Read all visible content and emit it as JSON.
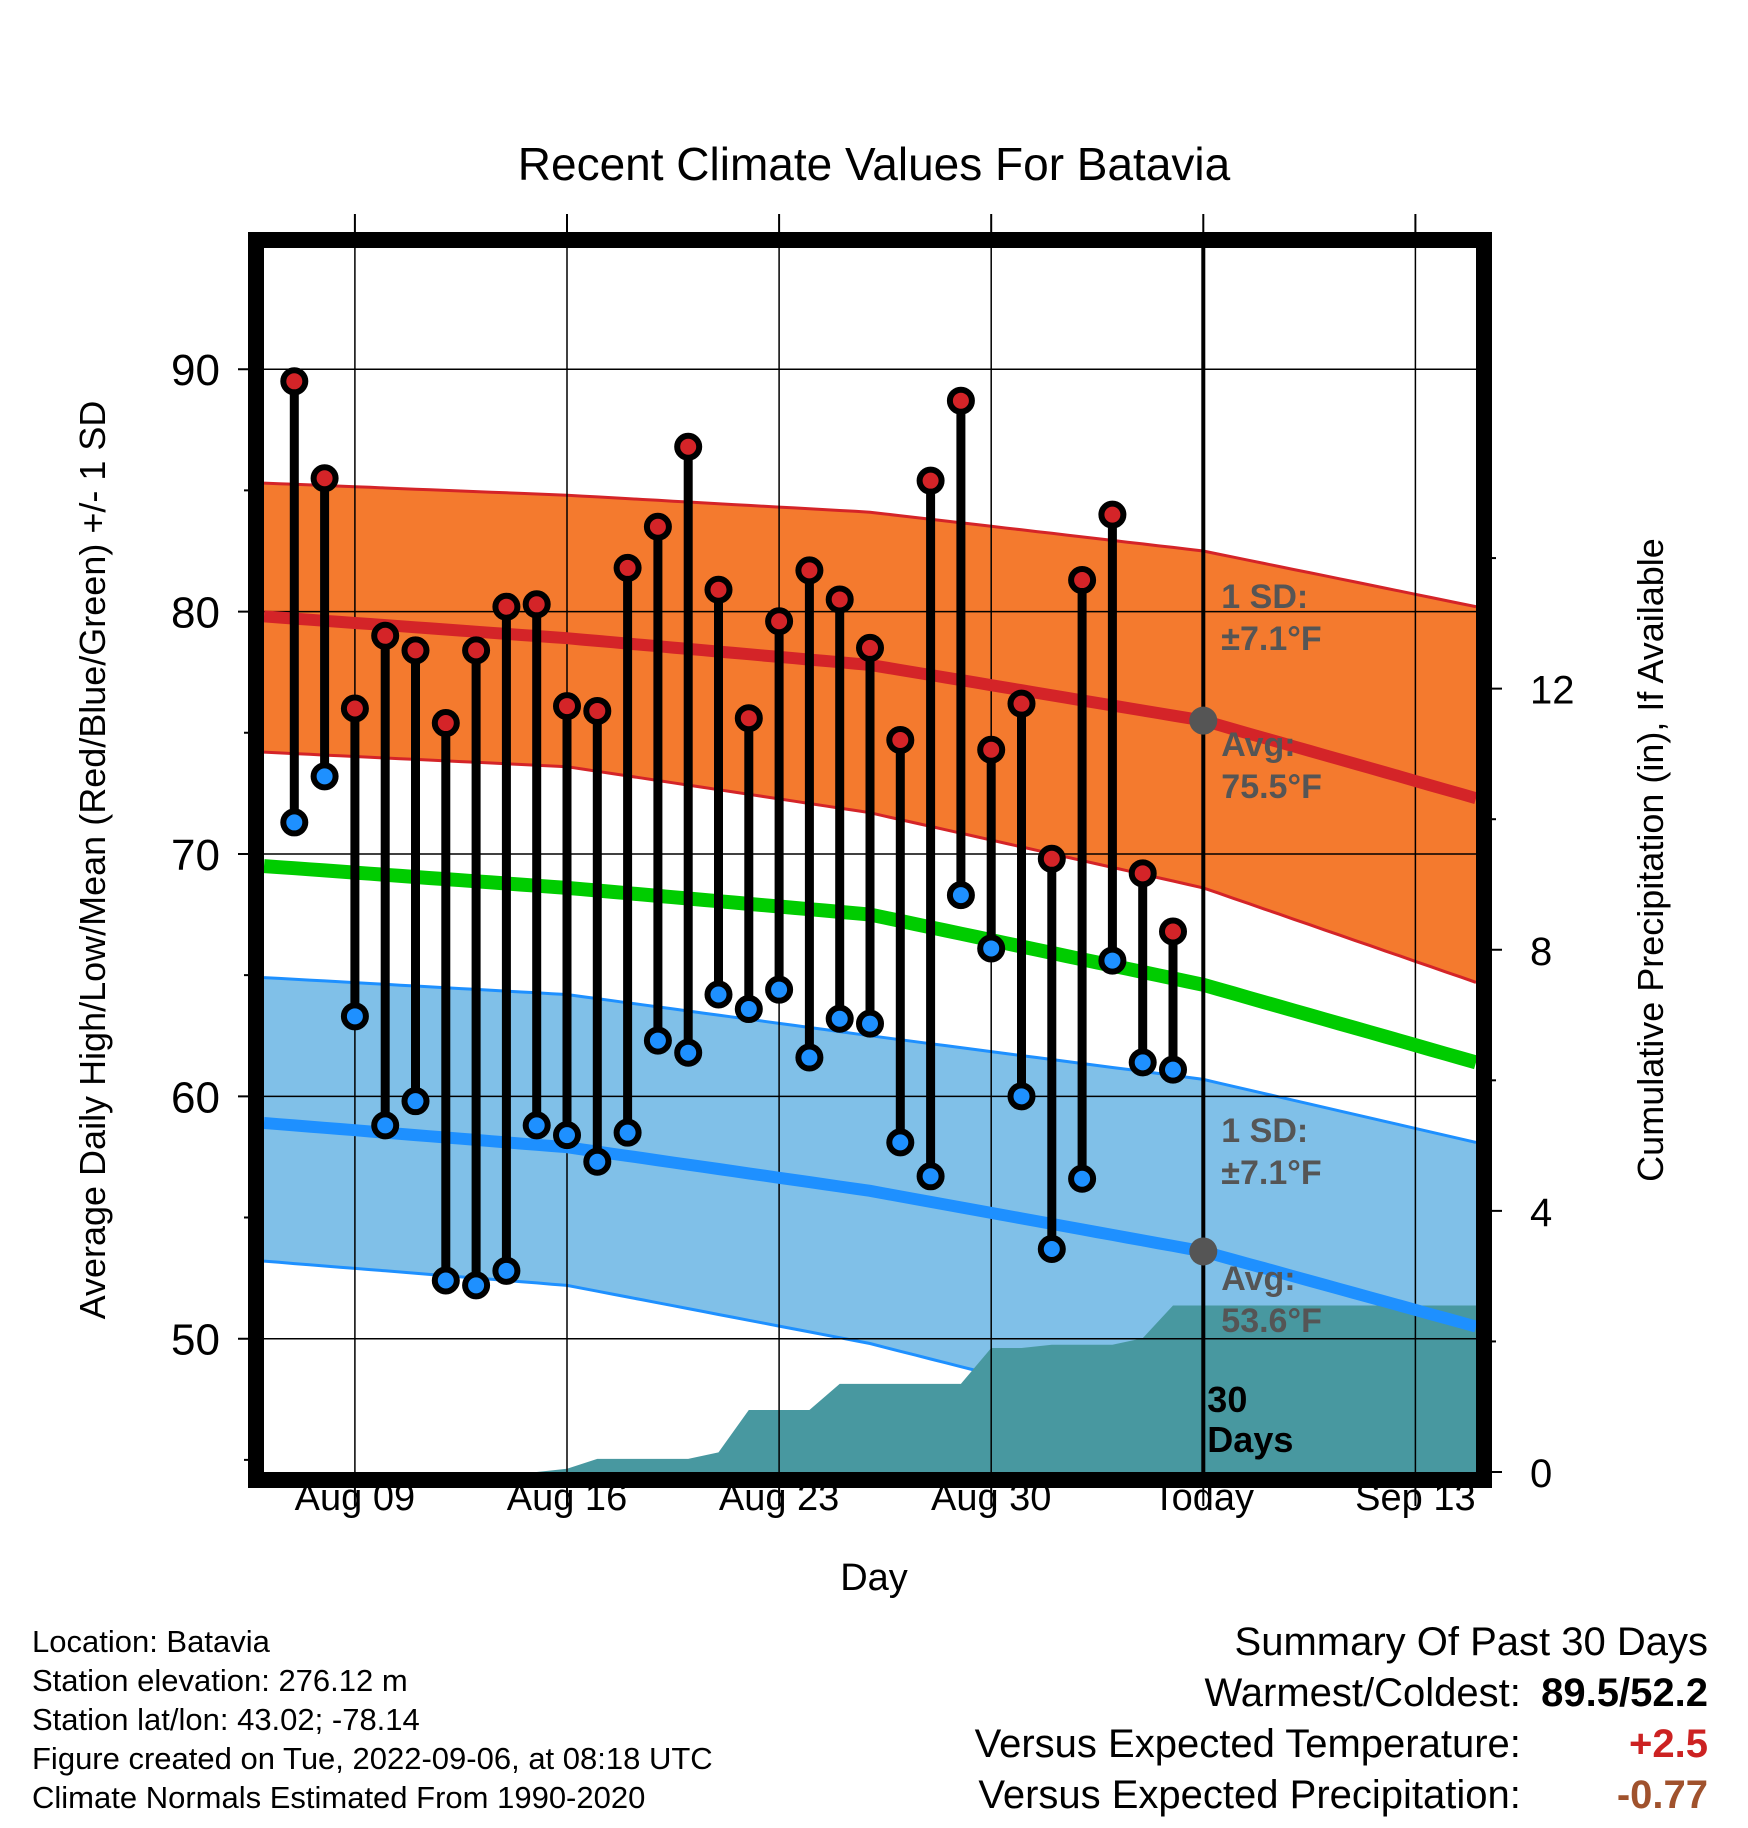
{
  "chart_data": {
    "type": "line",
    "title": "Recent Climate Values For Batavia",
    "xlabel": "Day",
    "ylabel": "Average Daily High/Low/Mean (Red/Blue/Green) +/- 1 SD",
    "y2label": "Cumulative Precipitation (in), If Available",
    "ylim": [
      44.5,
      95
    ],
    "y2lim": [
      0,
      18.75
    ],
    "xlim": [
      "2022-08-06",
      "2022-09-15"
    ],
    "yticks": [
      90,
      80,
      70,
      60,
      50
    ],
    "y2ticks": [
      12,
      8,
      4,
      0
    ],
    "xticks": [
      {
        "date": "2022-08-09",
        "label": "Aug 09"
      },
      {
        "date": "2022-08-16",
        "label": "Aug 16"
      },
      {
        "date": "2022-08-23",
        "label": "Aug 23"
      },
      {
        "date": "2022-08-30",
        "label": "Aug 30"
      },
      {
        "date": "2022-09-06",
        "label": "Today"
      },
      {
        "date": "2022-09-13",
        "label": "Sep 13"
      }
    ],
    "grid": true,
    "today": "2022-09-06",
    "observed": {
      "dates": [
        "2022-08-07",
        "2022-08-08",
        "2022-08-09",
        "2022-08-10",
        "2022-08-11",
        "2022-08-12",
        "2022-08-13",
        "2022-08-14",
        "2022-08-15",
        "2022-08-16",
        "2022-08-17",
        "2022-08-18",
        "2022-08-19",
        "2022-08-20",
        "2022-08-21",
        "2022-08-22",
        "2022-08-23",
        "2022-08-24",
        "2022-08-25",
        "2022-08-26",
        "2022-08-27",
        "2022-08-28",
        "2022-08-29",
        "2022-08-30",
        "2022-08-31",
        "2022-09-01",
        "2022-09-02",
        "2022-09-03",
        "2022-09-04",
        "2022-09-05"
      ],
      "highs": [
        89.5,
        85.5,
        76.0,
        79.0,
        78.4,
        75.4,
        78.4,
        80.2,
        80.3,
        76.1,
        75.9,
        81.8,
        83.5,
        86.8,
        80.9,
        75.6,
        79.6,
        81.7,
        80.5,
        78.5,
        74.7,
        85.4,
        88.7,
        74.3,
        76.2,
        69.8,
        81.3,
        84.0,
        69.2,
        66.8
      ],
      "lows": [
        71.3,
        73.2,
        63.3,
        58.8,
        59.8,
        52.4,
        52.2,
        52.8,
        58.8,
        58.4,
        57.3,
        58.5,
        62.3,
        61.8,
        64.2,
        63.6,
        64.4,
        61.6,
        63.2,
        63.0,
        58.1,
        56.7,
        68.3,
        66.1,
        60.0,
        53.7,
        56.6,
        65.6,
        61.4,
        61.1
      ]
    },
    "normals": {
      "dates": [
        "2022-08-06",
        "2022-08-16",
        "2022-08-26",
        "2022-09-06",
        "2022-09-15"
      ],
      "high_avg": [
        79.8,
        78.9,
        77.8,
        75.5,
        72.3
      ],
      "high_sd_upper": [
        85.3,
        84.8,
        84.1,
        82.5,
        80.2
      ],
      "high_sd_lower": [
        74.2,
        73.6,
        71.7,
        68.6,
        64.7
      ],
      "low_avg": [
        58.9,
        57.9,
        56.1,
        53.6,
        50.5
      ],
      "low_sd_upper": [
        64.9,
        64.2,
        62.5,
        60.7,
        58.1
      ],
      "low_sd_lower": [
        53.2,
        52.2,
        49.8,
        46.3,
        42.8
      ],
      "mean": [
        69.5,
        68.6,
        67.5,
        64.6,
        61.4
      ]
    },
    "precipitation": {
      "dates": [
        "2022-08-06",
        "2022-08-15",
        "2022-08-16",
        "2022-08-17",
        "2022-08-18",
        "2022-08-19",
        "2022-08-20",
        "2022-08-21",
        "2022-08-22",
        "2022-08-23",
        "2022-08-24",
        "2022-08-25",
        "2022-08-26",
        "2022-08-27",
        "2022-08-28",
        "2022-08-29",
        "2022-08-30",
        "2022-08-31",
        "2022-09-01",
        "2022-09-02",
        "2022-09-03",
        "2022-09-04",
        "2022-09-05",
        "2022-09-06",
        "2022-09-15"
      ],
      "cumulative": [
        0,
        0,
        0.05,
        0.2,
        0.2,
        0.2,
        0.2,
        0.3,
        0.95,
        0.95,
        0.95,
        1.35,
        1.35,
        1.35,
        1.35,
        1.35,
        1.9,
        1.9,
        1.95,
        1.95,
        1.95,
        2.05,
        2.55,
        2.55,
        2.55
      ]
    },
    "high_stats": {
      "sd_label": "1 SD:",
      "sd_value": "±7.1°F",
      "avg_label": "Avg:",
      "avg_value": "75.5°F"
    },
    "low_stats": {
      "sd_label": "1 SD:",
      "sd_value": "±7.1°F",
      "avg_label": "Avg:",
      "avg_value": "53.6°F"
    },
    "precip_window": "30",
    "precip_window_unit": "Days",
    "colors": {
      "high": "#d42428",
      "high_band": "#f47a2e",
      "low": "#1e90ff",
      "low_band": "#80c0e8",
      "mean": "#00cc00",
      "precip": "#4898a0",
      "today_marker": "#555555",
      "annotation": "#555555"
    }
  },
  "footer": {
    "location": "Location: Batavia",
    "elevation": "Station elevation: 276.12 m",
    "latlon": "Station lat/lon: 43.02; -78.14",
    "created": "Figure created on Tue, 2022-09-06, at 08:18 UTC",
    "normals": "Climate Normals Estimated From 1990-2020"
  },
  "summary": {
    "title": "Summary Of Past 30 Days",
    "warmest_label": "Warmest/Coldest:",
    "warmest_value": "89.5/52.2",
    "temp_label": "Versus Expected Temperature:",
    "temp_value": "+2.5",
    "precip_label": "Versus Expected Precipitation:",
    "precip_value": "-0.77"
  }
}
